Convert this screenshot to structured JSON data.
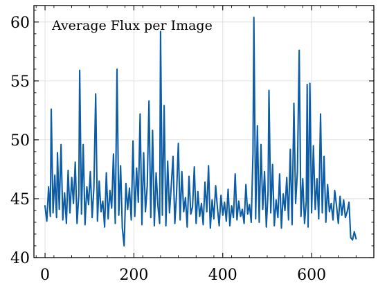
{
  "chart_data": {
    "type": "line",
    "title": "Average Flux per Image",
    "xlabel": "",
    "ylabel": "",
    "xlim": [
      -25,
      740
    ],
    "ylim": [
      40.0,
      61.4
    ],
    "xticks": [
      0,
      200,
      400,
      600
    ],
    "xtick_labels": [
      "0",
      "200",
      "400",
      "600"
    ],
    "yticks": [
      40,
      45,
      50,
      55,
      60
    ],
    "ytick_labels": [
      "40",
      "45",
      "50",
      "55",
      "60"
    ],
    "grid": true,
    "legend": "none",
    "line_color": "#0C5DA5",
    "series": [
      {
        "x": [
          0,
          4,
          8,
          12,
          14,
          18,
          22,
          26,
          28,
          32,
          36,
          40,
          44,
          48,
          52,
          56,
          60,
          64,
          68,
          72,
          76,
          78,
          82,
          86,
          90,
          94,
          98,
          102,
          106,
          110,
          114,
          118,
          122,
          126,
          130,
          134,
          138,
          142,
          146,
          150,
          154,
          158,
          162,
          166,
          170,
          174,
          178,
          182,
          186,
          190,
          194,
          198,
          202,
          206,
          210,
          214,
          218,
          222,
          226,
          230,
          234,
          238,
          242,
          246,
          250,
          254,
          258,
          260,
          264,
          268,
          272,
          276,
          280,
          284,
          288,
          292,
          296,
          300,
          304,
          308,
          312,
          316,
          320,
          324,
          328,
          332,
          336,
          340,
          344,
          348,
          352,
          356,
          360,
          364,
          368,
          372,
          376,
          380,
          384,
          388,
          392,
          396,
          400,
          404,
          408,
          412,
          416,
          420,
          424,
          428,
          432,
          436,
          440,
          444,
          448,
          452,
          456,
          460,
          464,
          468,
          470,
          474,
          478,
          482,
          486,
          490,
          494,
          498,
          502,
          504,
          508,
          512,
          516,
          520,
          524,
          528,
          532,
          536,
          540,
          544,
          548,
          552,
          556,
          560,
          564,
          568,
          572,
          576,
          580,
          584,
          588,
          590,
          592,
          596,
          600,
          604,
          608,
          612,
          616,
          620,
          624,
          628,
          632,
          636,
          640,
          644,
          648,
          652,
          656,
          660,
          664,
          668,
          672,
          676,
          680,
          684,
          688,
          692,
          696,
          700
        ],
        "y": [
          44.4,
          43.1,
          46.0,
          43.5,
          52.6,
          43.8,
          47.0,
          43.4,
          48.9,
          44.1,
          49.6,
          43.2,
          45.5,
          42.9,
          47.4,
          43.8,
          46.8,
          44.6,
          48.1,
          42.9,
          45.3,
          55.9,
          43.7,
          49.6,
          42.8,
          46.0,
          44.5,
          47.3,
          43.4,
          45.9,
          53.9,
          43.1,
          46.5,
          43.9,
          44.8,
          42.6,
          47.2,
          43.3,
          45.7,
          44.2,
          48.8,
          42.9,
          56.0,
          43.6,
          47.8,
          42.5,
          41.0,
          46.3,
          44.1,
          45.9,
          43.2,
          49.9,
          43.5,
          47.6,
          44.7,
          52.2,
          42.8,
          48.9,
          43.9,
          46.1,
          53.3,
          43.4,
          50.8,
          42.7,
          47.2,
          44.4,
          42.9,
          59.2,
          43.6,
          52.9,
          42.7,
          48.2,
          43.8,
          46.0,
          48.6,
          42.9,
          45.4,
          49.7,
          43.2,
          47.3,
          43.9,
          45.1,
          42.6,
          46.9,
          43.7,
          44.3,
          47.7,
          42.9,
          45.6,
          43.5,
          44.6,
          42.8,
          46.4,
          43.9,
          47.8,
          42.5,
          44.9,
          43.3,
          46.1,
          44.2,
          42.7,
          45.3,
          43.6,
          44.7,
          43.1,
          45.8,
          42.7,
          44.4,
          43.4,
          47.1,
          43.2,
          44.8,
          43.5,
          44.1,
          42.9,
          46.2,
          43.7,
          44.5,
          43.0,
          48.8,
          60.4,
          43.3,
          51.2,
          43.0,
          49.6,
          44.1,
          47.3,
          42.6,
          45.6,
          54.2,
          43.8,
          47.9,
          42.7,
          44.9,
          43.4,
          47.1,
          42.5,
          45.4,
          44.0,
          46.8,
          43.2,
          49.2,
          42.8,
          53.1,
          44.6,
          47.3,
          57.6,
          43.5,
          46.7,
          42.9,
          44.8,
          54.7,
          42.6,
          54.8,
          43.8,
          49.5,
          44.1,
          46.7,
          43.3,
          52.2,
          43.8,
          48.6,
          43.0,
          46.2,
          43.9,
          44.6,
          43.2,
          45.7,
          44.4,
          42.9,
          45.2,
          43.6,
          44.9,
          43.4,
          43.9,
          44.7,
          41.7,
          41.5,
          42.2,
          41.6
        ]
      }
    ]
  }
}
